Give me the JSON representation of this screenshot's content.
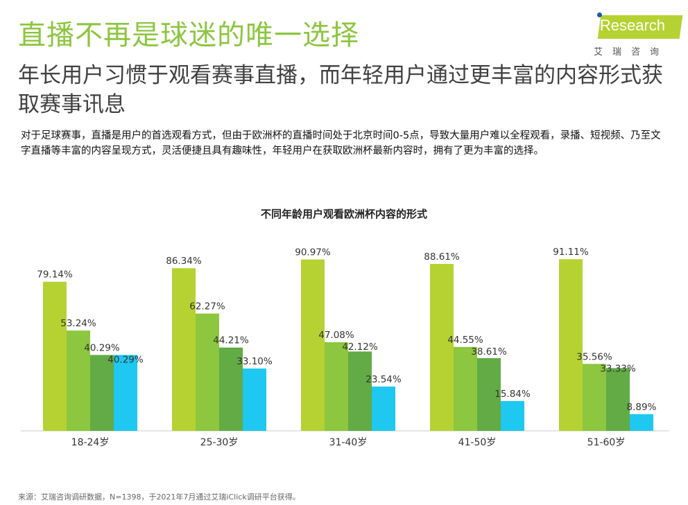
{
  "title": "直播不再是球迷的唯一选择",
  "subtitle": "年长用户习惯于观看赛事直播，而年轻用户通过更丰富的内容形式获取赛事讯息",
  "description": "对于足球赛事，直播是用户的首选观看方式，但由于欧洲杯的直播时间处于北京时间0-5点，导致大量用户难以全程观看，录播、短视频、乃至文字直播等丰富的内容呈现方式，灵活便捷且具有趣味性，年轻用户在获取欧洲杯最新内容时，拥有了更为丰富的选择。",
  "logo": {
    "text": "iResearch",
    "cn": "艾瑞咨询"
  },
  "source": "来源：艾瑞咨询调研数据，N=1398，于2021年7月通过艾瑞iClick调研平台获得。",
  "chart_data": {
    "type": "bar",
    "title": "不同年龄用户观看欧洲杯内容的形式",
    "categories": [
      "18-24岁",
      "25-30岁",
      "31-40岁",
      "41-50岁",
      "51-60岁"
    ],
    "series": [
      {
        "values": [
          79.14,
          86.34,
          90.97,
          88.61,
          91.11
        ],
        "color": "#b5d232"
      },
      {
        "values": [
          53.24,
          62.27,
          47.08,
          44.55,
          35.56
        ],
        "color": "#8dc63f"
      },
      {
        "values": [
          40.29,
          44.21,
          42.12,
          38.61,
          33.33
        ],
        "color": "#62ab45"
      },
      {
        "values": [
          40.29,
          33.1,
          23.54,
          15.84,
          8.89
        ],
        "color": "#1ec8f0"
      }
    ],
    "ylim": [
      0,
      100
    ],
    "unit": "%",
    "grid": false,
    "legend": "none"
  }
}
